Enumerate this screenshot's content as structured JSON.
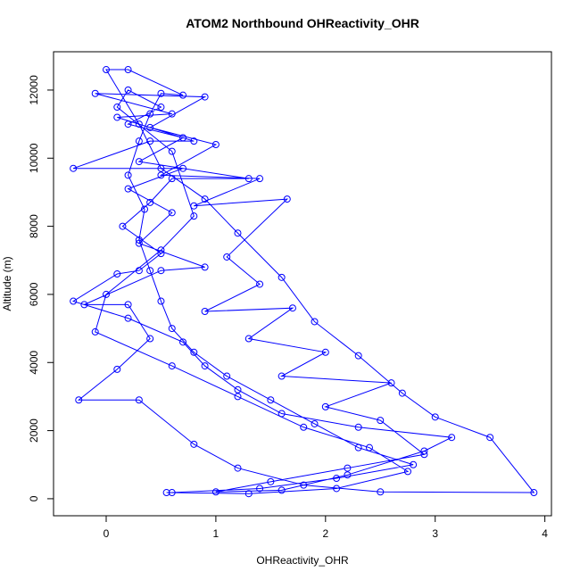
{
  "chart_data": {
    "type": "line",
    "title": "ATOM2 Northbound OHReactivity_OHR",
    "x_label": "OHReactivity_OHR",
    "y_label": "Altitude (m)",
    "xlim": [
      -0.48,
      4.06
    ],
    "ylim": [
      -500,
      13125
    ],
    "xticks": [
      0,
      1,
      2,
      3,
      4
    ],
    "yticks": [
      0,
      2000,
      4000,
      6000,
      8000,
      10000,
      12000
    ],
    "x": [
      0.6,
      1.4,
      2.1,
      2.8,
      2.3,
      1.9,
      1.5,
      1.1,
      0.8,
      0.6,
      0.5,
      0.4,
      0.3,
      0.35,
      0.2,
      0.3,
      0.4,
      0.5,
      0.7,
      0.2,
      0.0,
      0.3,
      0.5,
      0.9,
      1.2,
      1.6,
      1.9,
      2.3,
      2.7,
      3.0,
      3.5,
      3.9,
      2.5,
      1.8,
      1.2,
      0.8,
      0.3,
      -0.25,
      0.1,
      0.4,
      0.2,
      -0.2,
      0.5,
      0.9,
      0.3,
      0.6,
      0.2,
      0.7,
      -0.3,
      0.4,
      0.8,
      0.1,
      0.6,
      -0.1,
      0.9,
      0.4,
      1.0,
      0.5,
      1.4,
      0.8,
      1.65,
      1.1,
      1.4,
      0.9,
      1.7,
      1.3,
      2.0,
      1.6,
      2.6,
      2.0,
      2.5,
      2.9,
      2.2,
      1.5,
      1.0,
      1.6,
      2.2,
      2.9,
      3.15,
      2.3,
      1.6,
      1.2,
      0.9,
      0.7,
      0.2,
      -0.3,
      0.1,
      0.3,
      0.5,
      0.15,
      0.4,
      0.6,
      1.3,
      0.3,
      0.7,
      0.2,
      0.5,
      0.2,
      0.1,
      0.6,
      0.8,
      0.5,
      0.0,
      -0.1,
      0.6,
      1.2,
      1.8,
      2.4,
      2.75,
      2.1,
      1.3,
      0.55
    ],
    "series": [
      {
        "name": "OHR",
        "color": "#0000ff",
        "values": [
          180,
          300,
          600,
          1000,
          1500,
          2200,
          2900,
          3600,
          4300,
          5000,
          5800,
          6700,
          7600,
          8500,
          9500,
          10500,
          11300,
          11900,
          11850,
          12600,
          12600,
          11000,
          9700,
          8800,
          7800,
          6500,
          5200,
          4200,
          3100,
          2400,
          1800,
          180,
          200,
          400,
          900,
          1600,
          2900,
          2900,
          3800,
          4700,
          5700,
          5700,
          6700,
          6800,
          7500,
          8400,
          9100,
          9700,
          9700,
          10500,
          10500,
          11200,
          11300,
          11900,
          11800,
          10900,
          10400,
          9500,
          9400,
          8600,
          8800,
          7100,
          6300,
          5500,
          5600,
          4700,
          4300,
          3600,
          3400,
          2700,
          2300,
          1300,
          900,
          500,
          200,
          250,
          700,
          1400,
          1800,
          2100,
          2500,
          3200,
          3900,
          4600,
          5300,
          5800,
          6600,
          6700,
          7200,
          8000,
          8700,
          9400,
          9400,
          9900,
          10600,
          11000,
          11500,
          12000,
          11500,
          10200,
          8300,
          7300,
          6000,
          4900,
          3900,
          3000,
          2100,
          1500,
          800,
          300,
          150,
          180
        ]
      }
    ]
  }
}
